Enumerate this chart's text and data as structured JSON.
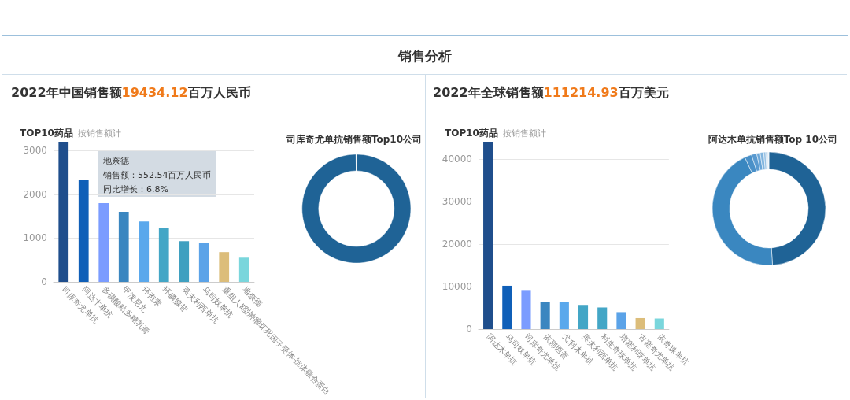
{
  "chart_data": [
    {
      "type": "bar",
      "title": "TOP10药品",
      "subtitle": "按销售额计",
      "annotations": [
        "销售分析",
        "2022年中国销售额19434.12百万人民币",
        "地奈德",
        "销售额：552.54百万人民币",
        "同比增长：6.8%"
      ],
      "categories": [
        "司库奇尤单抗",
        "阿达木单抗",
        "多磺酸粘多糖乳膏",
        "甲泼尼龙",
        "环孢素",
        "环磷腺苷",
        "英夫利西单抗",
        "乌司奴单抗",
        "重组人Ⅱ型肿瘤坏死因子受体-抗体融合蛋白",
        "地奈德"
      ],
      "values": [
        3200,
        2320,
        1800,
        1600,
        1380,
        1230,
        930,
        880,
        680,
        552.54
      ],
      "colors": [
        "#1f4e8c",
        "#0f5fb8",
        "#7b9cff",
        "#3a86c0",
        "#5aa8ec",
        "#43a6c6",
        "#3fa0c0",
        "#5ba3e8",
        "#dcbd7a",
        "#7ad6dc"
      ],
      "ylim": [
        0,
        3200
      ],
      "yticks": [
        0,
        1000,
        2000,
        3000
      ],
      "grid": "y"
    },
    {
      "type": "donut",
      "title": "司库奇尤单抗销售额Top10公司",
      "categories": [
        null,
        null
      ],
      "values": [
        99.9,
        0.1
      ],
      "colors": [
        "#1f6396",
        "#e8eef4"
      ]
    },
    {
      "type": "bar",
      "title": "TOP10药品",
      "subtitle": "按销售额计",
      "annotations": [
        "2022年全球销售额111214.93百万美元"
      ],
      "categories": [
        "阿达木单抗",
        "乌司奴单抗",
        "司库奇尤单抗",
        "依那西普",
        "戈利木单抗",
        "英夫利西单抗",
        "利生奇珠单抗",
        "培塞利珠单抗",
        "古塞奇尤单抗",
        "依奇珠单抗"
      ],
      "values": [
        44100,
        10200,
        9200,
        6400,
        6400,
        5700,
        5100,
        4000,
        2600,
        2500
      ],
      "colors": [
        "#1f4e8c",
        "#0f5fb8",
        "#7b9cff",
        "#3a86c0",
        "#5aa8ec",
        "#43a6c6",
        "#43a6c6",
        "#5ba3e8",
        "#dcbd7a",
        "#7ad6dc"
      ],
      "ylim": [
        0,
        44100
      ],
      "yticks": [
        0,
        10000,
        20000,
        30000,
        40000
      ],
      "grid": "y"
    },
    {
      "type": "donut",
      "title": "阿达木单抗销售额Top 10公司",
      "categories": [
        null,
        null,
        null,
        null,
        null,
        null,
        null,
        null,
        null,
        null
      ],
      "values": [
        49,
        44,
        2,
        1.5,
        1,
        1,
        0.6,
        0.4,
        0.3,
        0.2
      ],
      "colors": [
        "#1f6396",
        "#3a87c0",
        "#4a90c8",
        "#5a9ad0",
        "#6aa6d8",
        "#80b4de",
        "#98c2e4",
        "#b0d0ea",
        "#c8def0",
        "#dfeaf5"
      ]
    }
  ]
}
